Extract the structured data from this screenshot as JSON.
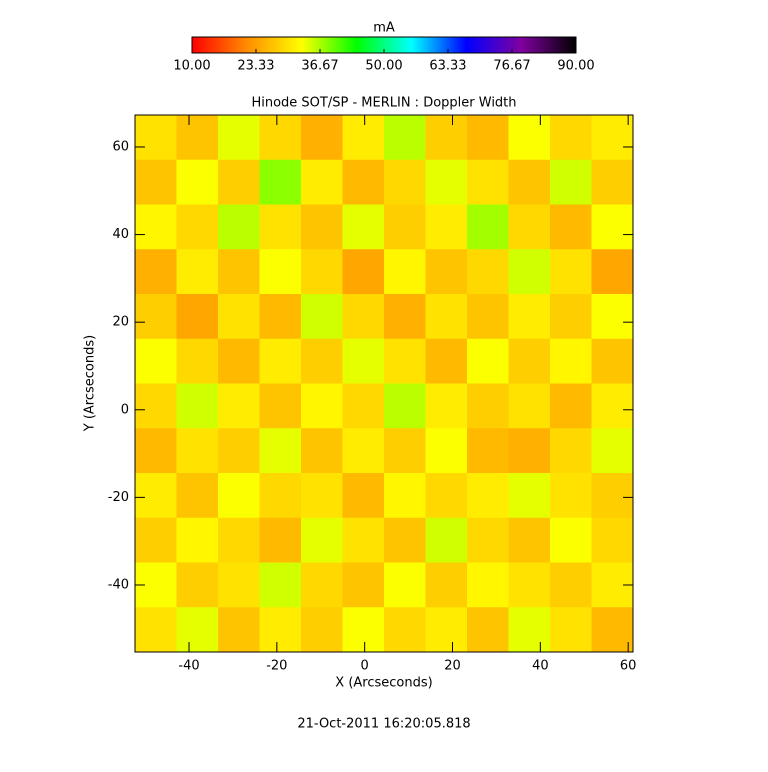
{
  "chart_data": {
    "type": "heatmap",
    "title": "Hinode SOT/SP - MERLIN : Doppler Width",
    "colorbar_label": "mA",
    "x_label": "X (Arcseconds)",
    "y_label": "Y (Arcseconds)",
    "footer": "21-Oct-2011 16:20:05.818",
    "colormap": [
      "#ff0000",
      "#ff8c00",
      "#ffff00",
      "#00ff00",
      "#00ffff",
      "#0000ff",
      "#8000a0",
      "#000000"
    ],
    "zlim": [
      10,
      90
    ],
    "zticks": [
      {
        "value": 10,
        "label": "10.00"
      },
      {
        "value": 23.33,
        "label": "23.33"
      },
      {
        "value": 36.67,
        "label": "36.67"
      },
      {
        "value": 50,
        "label": "50.00"
      },
      {
        "value": 63.33,
        "label": "63.33"
      },
      {
        "value": 76.67,
        "label": "76.67"
      },
      {
        "value": 90,
        "label": "90.00"
      }
    ],
    "xlim": [
      -52.3,
      61.1
    ],
    "ylim": [
      -55.3,
      67.3
    ],
    "xticks": [
      -40,
      -20,
      0,
      20,
      40,
      60
    ],
    "yticks": [
      -40,
      -20,
      0,
      20,
      40,
      60
    ],
    "z": [
      [
        30,
        27,
        34,
        29,
        25,
        31,
        36,
        28,
        26,
        33,
        29,
        31
      ],
      [
        27,
        33,
        28,
        38,
        31,
        26,
        29,
        34,
        30,
        27,
        35,
        28
      ],
      [
        32,
        29,
        36,
        30,
        27,
        34,
        28,
        31,
        37,
        29,
        26,
        33
      ],
      [
        25,
        31,
        27,
        33,
        29,
        24,
        32,
        27,
        29,
        35,
        30,
        24
      ],
      [
        28,
        24,
        30,
        26,
        35,
        29,
        25,
        30,
        27,
        31,
        28,
        33
      ],
      [
        33,
        29,
        26,
        31,
        28,
        34,
        30,
        26,
        33,
        28,
        32,
        27
      ],
      [
        29,
        35,
        31,
        27,
        32,
        29,
        36,
        31,
        28,
        30,
        26,
        31
      ],
      [
        26,
        30,
        28,
        34,
        27,
        31,
        28,
        33,
        26,
        25,
        29,
        34
      ],
      [
        31,
        27,
        33,
        29,
        30,
        26,
        32,
        29,
        31,
        34,
        30,
        28
      ],
      [
        28,
        32,
        29,
        26,
        34,
        30,
        27,
        35,
        29,
        27,
        33,
        29
      ],
      [
        33,
        28,
        30,
        35,
        29,
        27,
        33,
        28,
        32,
        30,
        28,
        31
      ],
      [
        30,
        34,
        27,
        31,
        28,
        33,
        29,
        31,
        27,
        34,
        30,
        26
      ]
    ]
  }
}
